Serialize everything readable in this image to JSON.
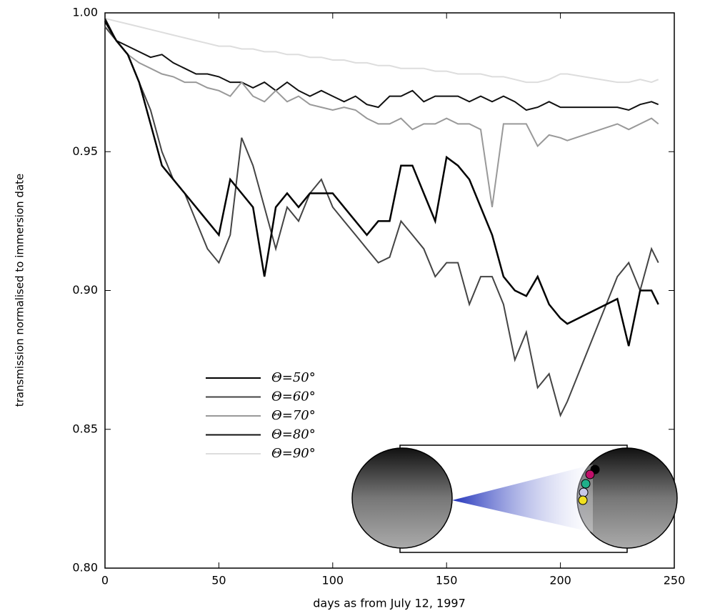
{
  "chart_data": {
    "type": "line",
    "xlabel": "days as from July 12, 1997",
    "ylabel": "transmission normalised to immersion date",
    "x": [
      0,
      5,
      10,
      15,
      20,
      25,
      30,
      35,
      40,
      45,
      50,
      55,
      60,
      65,
      70,
      75,
      80,
      85,
      90,
      95,
      100,
      105,
      110,
      115,
      120,
      125,
      130,
      135,
      140,
      145,
      150,
      155,
      160,
      165,
      170,
      175,
      180,
      185,
      190,
      195,
      200,
      203,
      225,
      230,
      235,
      240,
      243
    ],
    "series": [
      {
        "name": "Θ=50°",
        "color": "#000000",
        "values": [
          0.997,
          0.99,
          0.985,
          0.975,
          0.96,
          0.945,
          0.94,
          0.935,
          0.93,
          0.925,
          0.92,
          0.94,
          0.935,
          0.93,
          0.905,
          0.93,
          0.935,
          0.93,
          0.935,
          0.935,
          0.935,
          0.93,
          0.925,
          0.92,
          0.925,
          0.925,
          0.945,
          0.945,
          0.935,
          0.925,
          0.948,
          0.945,
          0.94,
          0.93,
          0.92,
          0.905,
          0.9,
          0.898,
          0.905,
          0.895,
          0.89,
          0.888,
          0.897,
          0.88,
          0.9,
          0.9,
          0.895
        ]
      },
      {
        "name": "Θ=60°",
        "color": "#444444",
        "values": [
          0.995,
          0.99,
          0.985,
          0.975,
          0.965,
          0.95,
          0.94,
          0.935,
          0.925,
          0.915,
          0.91,
          0.92,
          0.955,
          0.945,
          0.93,
          0.915,
          0.93,
          0.925,
          0.935,
          0.94,
          0.93,
          0.925,
          0.92,
          0.915,
          0.91,
          0.912,
          0.925,
          0.92,
          0.915,
          0.905,
          0.91,
          0.91,
          0.895,
          0.905,
          0.905,
          0.895,
          0.875,
          0.885,
          0.865,
          0.87,
          0.855,
          0.86,
          0.905,
          0.91,
          0.9,
          0.915,
          0.91
        ]
      },
      {
        "name": "Θ=70°",
        "color": "#999999",
        "values": [
          0.995,
          0.99,
          0.985,
          0.982,
          0.98,
          0.978,
          0.977,
          0.975,
          0.975,
          0.973,
          0.972,
          0.97,
          0.975,
          0.97,
          0.968,
          0.972,
          0.968,
          0.97,
          0.967,
          0.966,
          0.965,
          0.966,
          0.965,
          0.962,
          0.96,
          0.96,
          0.962,
          0.958,
          0.96,
          0.96,
          0.962,
          0.96,
          0.96,
          0.958,
          0.93,
          0.96,
          0.96,
          0.96,
          0.952,
          0.956,
          0.955,
          0.954,
          0.96,
          0.958,
          0.96,
          0.962,
          0.96
        ]
      },
      {
        "name": "Θ=80°",
        "color": "#111111",
        "values": [
          0.998,
          0.99,
          0.988,
          0.986,
          0.984,
          0.985,
          0.982,
          0.98,
          0.978,
          0.978,
          0.977,
          0.975,
          0.975,
          0.973,
          0.975,
          0.972,
          0.975,
          0.972,
          0.97,
          0.972,
          0.97,
          0.968,
          0.97,
          0.967,
          0.966,
          0.97,
          0.97,
          0.972,
          0.968,
          0.97,
          0.97,
          0.97,
          0.968,
          0.97,
          0.968,
          0.97,
          0.968,
          0.965,
          0.966,
          0.968,
          0.966,
          0.966,
          0.966,
          0.965,
          0.967,
          0.968,
          0.967
        ]
      },
      {
        "name": "Θ=90°",
        "color": "#dddddd",
        "values": [
          0.998,
          0.997,
          0.996,
          0.995,
          0.994,
          0.993,
          0.992,
          0.991,
          0.99,
          0.989,
          0.988,
          0.988,
          0.987,
          0.987,
          0.986,
          0.986,
          0.985,
          0.985,
          0.984,
          0.984,
          0.983,
          0.983,
          0.982,
          0.982,
          0.981,
          0.981,
          0.98,
          0.98,
          0.98,
          0.979,
          0.979,
          0.978,
          0.978,
          0.978,
          0.977,
          0.977,
          0.976,
          0.975,
          0.975,
          0.976,
          0.978,
          0.978,
          0.975,
          0.975,
          0.976,
          0.975,
          0.976
        ]
      }
    ],
    "xlim": [
      0,
      250
    ],
    "xticks": [
      0,
      50,
      100,
      150,
      200,
      250
    ],
    "ylim": [
      0.8,
      1.0
    ],
    "yticks": [
      {
        "value": 0.8,
        "label": "0.80"
      },
      0.85,
      {
        "value": 0.9,
        "label": "0.90"
      },
      0.95,
      {
        "value": 1.0,
        "label": "1.00"
      }
    ]
  }
}
